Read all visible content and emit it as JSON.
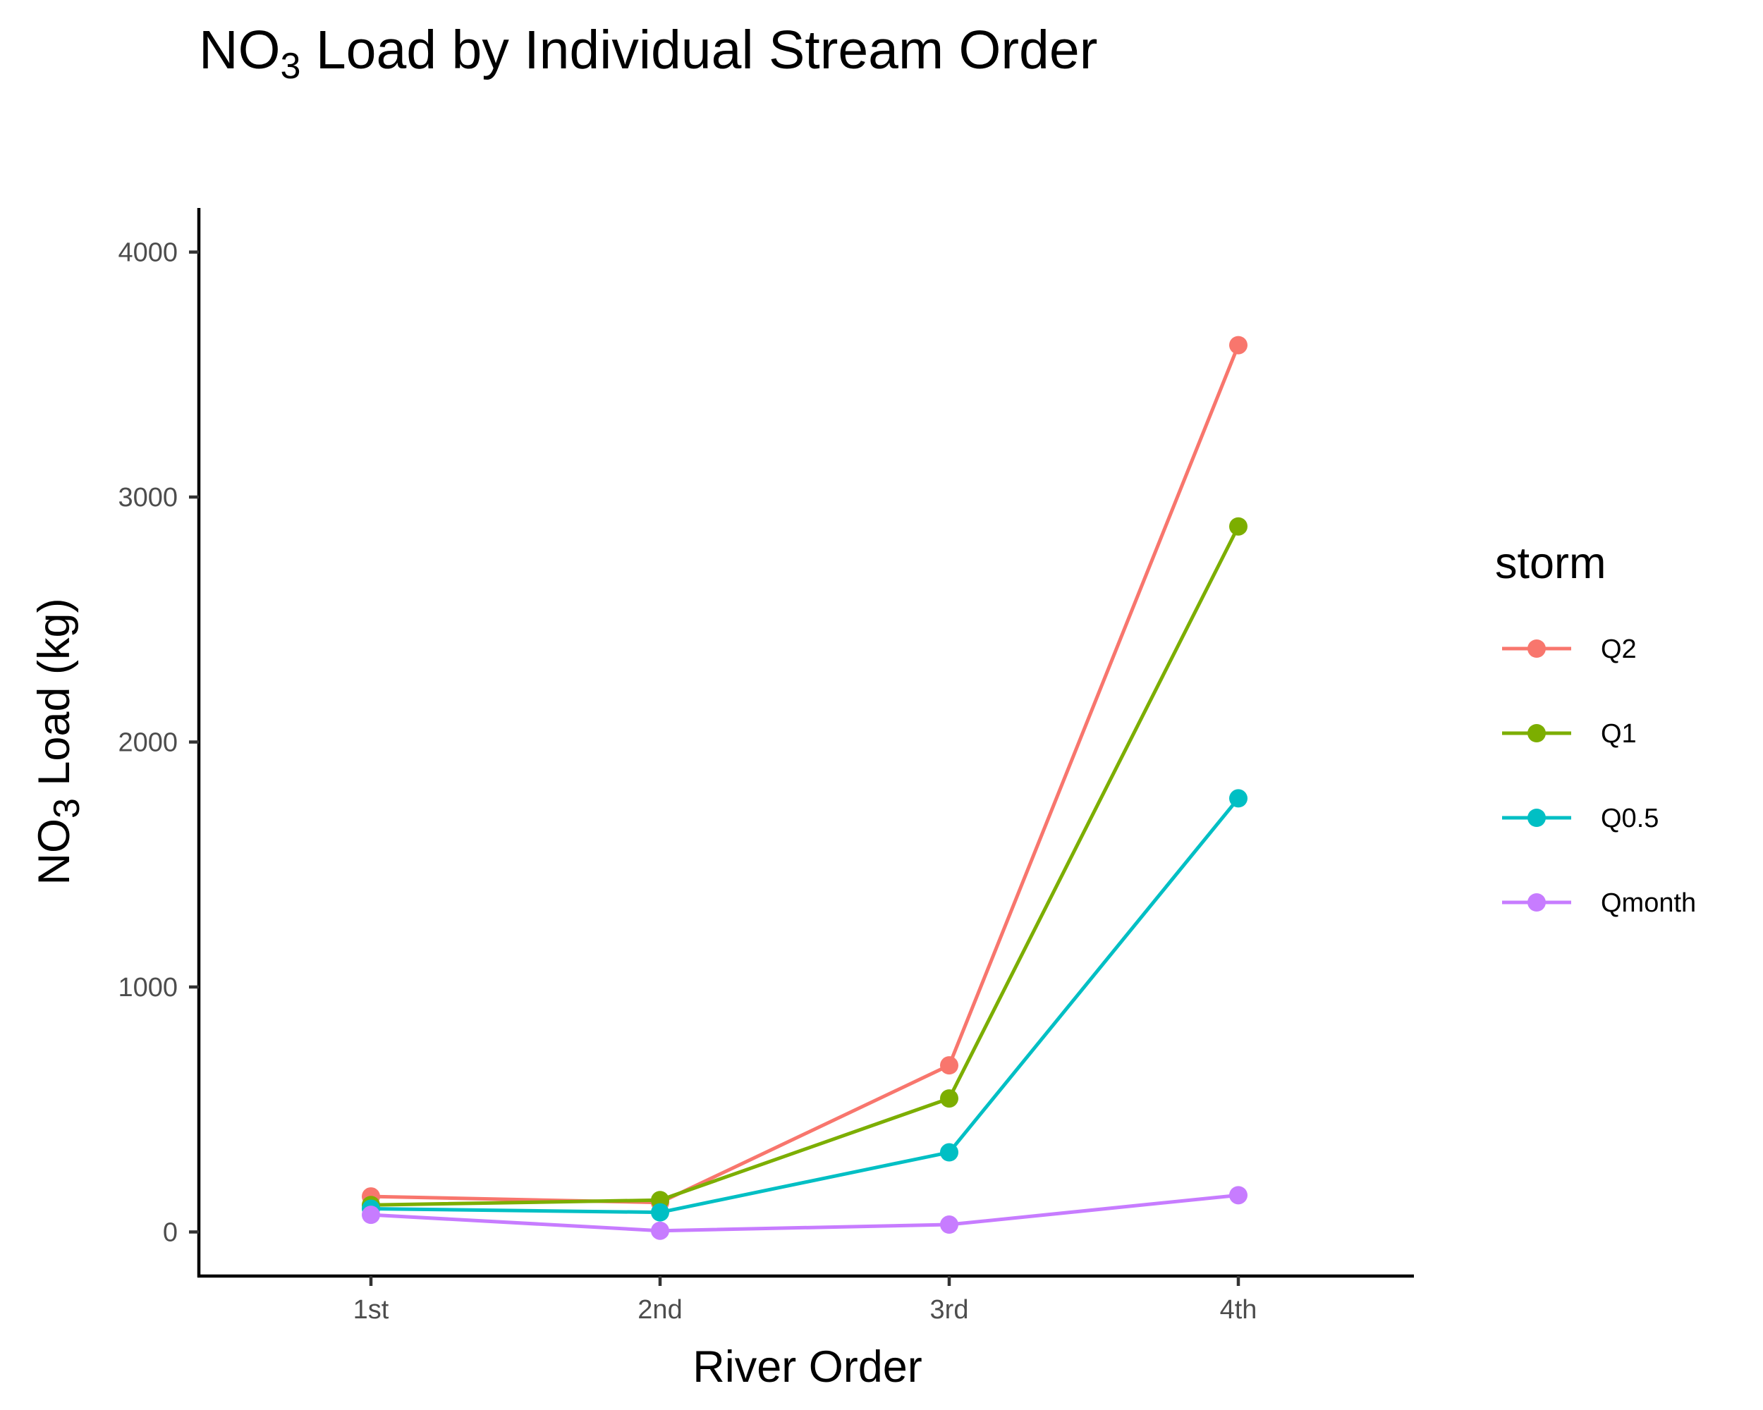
{
  "chart_data": {
    "type": "line",
    "title": {
      "main": "NO",
      "sub": "3",
      "rest": " Load by Individual Stream Order"
    },
    "xlabel": "River Order",
    "ylabel": {
      "main": "NO",
      "sub": "3",
      "rest": " Load (kg)"
    },
    "categories": [
      "1st",
      "2nd",
      "3rd",
      "4th"
    ],
    "ylim": [
      -180,
      4180
    ],
    "yticks": [
      0,
      1000,
      2000,
      3000,
      4000
    ],
    "grid": false,
    "legend_title": "storm",
    "legend_position": "right",
    "series": [
      {
        "name": "Q2",
        "color": "#F8766D",
        "values": [
          145,
          120,
          680,
          3620
        ]
      },
      {
        "name": "Q1",
        "color": "#7CAE00",
        "values": [
          110,
          130,
          545,
          2880
        ]
      },
      {
        "name": "Q0.5",
        "color": "#00BFC4",
        "values": [
          95,
          80,
          325,
          1770
        ]
      },
      {
        "name": "Qmonth",
        "color": "#C77CFF",
        "values": [
          70,
          5,
          30,
          150
        ]
      }
    ]
  }
}
